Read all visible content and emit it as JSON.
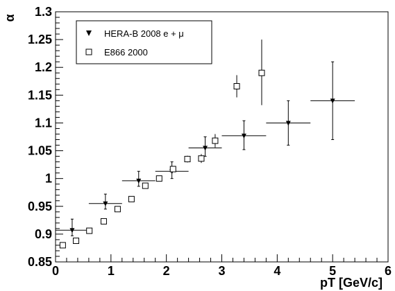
{
  "chart_data": {
    "type": "scatter",
    "xlabel": "pT [GeV/c]",
    "ylabel": "α",
    "xlim": [
      0,
      6
    ],
    "ylim": [
      0.85,
      1.3
    ],
    "x_ticks": [
      "0",
      "1",
      "2",
      "3",
      "4",
      "5",
      "6"
    ],
    "y_ticks": [
      "0.85",
      "0.9",
      "0.95",
      "1",
      "1.05",
      "1.1",
      "1.15",
      "1.2",
      "1.25",
      "1.3"
    ],
    "grid": false,
    "legend_position": "top-left",
    "series": [
      {
        "name": "HERA-B 2008 e + μ",
        "marker": "filled-down-triangle",
        "color": "#000000",
        "points": [
          {
            "x": 0.3,
            "y": 0.907,
            "xerr": 0.3,
            "yerr_lo": 0.01,
            "yerr_hi": 0.02
          },
          {
            "x": 0.9,
            "y": 0.955,
            "xerr": 0.3,
            "yerr_lo": 0.01,
            "yerr_hi": 0.017
          },
          {
            "x": 1.5,
            "y": 0.996,
            "xerr": 0.3,
            "yerr_lo": 0.01,
            "yerr_hi": 0.017
          },
          {
            "x": 2.1,
            "y": 1.013,
            "xerr": 0.3,
            "yerr_lo": 0.013,
            "yerr_hi": 0.017
          },
          {
            "x": 2.7,
            "y": 1.055,
            "xerr": 0.3,
            "yerr_lo": 0.015,
            "yerr_hi": 0.02
          },
          {
            "x": 3.4,
            "y": 1.077,
            "xerr": 0.4,
            "yerr_lo": 0.025,
            "yerr_hi": 0.027
          },
          {
            "x": 4.2,
            "y": 1.1,
            "xerr": 0.4,
            "yerr_lo": 0.04,
            "yerr_hi": 0.04
          },
          {
            "x": 5.0,
            "y": 1.14,
            "xerr": 0.4,
            "yerr_lo": 0.07,
            "yerr_hi": 0.07
          }
        ]
      },
      {
        "name": "E866 2000",
        "marker": "open-square",
        "color": "#000000",
        "points": [
          {
            "x": 0.13,
            "y": 0.88,
            "xerr": 0.05,
            "yerr_lo": 0.003,
            "yerr_hi": 0.003
          },
          {
            "x": 0.37,
            "y": 0.888,
            "xerr": 0.05,
            "yerr_lo": 0.003,
            "yerr_hi": 0.003
          },
          {
            "x": 0.61,
            "y": 0.906,
            "xerr": 0.05,
            "yerr_lo": 0.003,
            "yerr_hi": 0.003
          },
          {
            "x": 0.87,
            "y": 0.923,
            "xerr": 0.05,
            "yerr_lo": 0.003,
            "yerr_hi": 0.003
          },
          {
            "x": 1.12,
            "y": 0.945,
            "xerr": 0.05,
            "yerr_lo": 0.003,
            "yerr_hi": 0.003
          },
          {
            "x": 1.37,
            "y": 0.963,
            "xerr": 0.05,
            "yerr_lo": 0.004,
            "yerr_hi": 0.004
          },
          {
            "x": 1.62,
            "y": 0.987,
            "xerr": 0.05,
            "yerr_lo": 0.004,
            "yerr_hi": 0.004
          },
          {
            "x": 1.87,
            "y": 1.0,
            "xerr": 0.05,
            "yerr_lo": 0.005,
            "yerr_hi": 0.005
          },
          {
            "x": 2.12,
            "y": 1.017,
            "xerr": 0.05,
            "yerr_lo": 0.005,
            "yerr_hi": 0.005
          },
          {
            "x": 2.38,
            "y": 1.035,
            "xerr": 0.05,
            "yerr_lo": 0.006,
            "yerr_hi": 0.006
          },
          {
            "x": 2.63,
            "y": 1.036,
            "xerr": 0.05,
            "yerr_lo": 0.008,
            "yerr_hi": 0.008
          },
          {
            "x": 2.88,
            "y": 1.068,
            "xerr": 0.05,
            "yerr_lo": 0.012,
            "yerr_hi": 0.012
          },
          {
            "x": 3.27,
            "y": 1.166,
            "xerr": 0.05,
            "yerr_lo": 0.02,
            "yerr_hi": 0.02
          },
          {
            "x": 3.72,
            "y": 1.19,
            "xerr": 0.05,
            "yerr_lo": 0.058,
            "yerr_hi": 0.06
          }
        ]
      }
    ]
  }
}
